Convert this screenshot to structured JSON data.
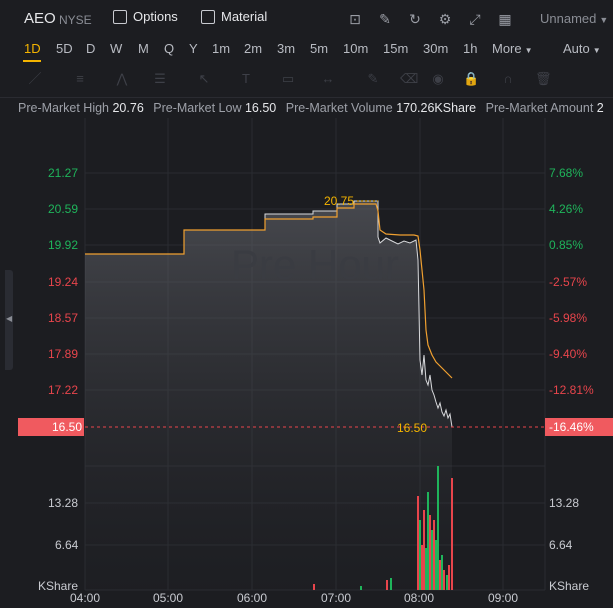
{
  "header": {
    "symbol": "AEO",
    "exchange": "NYSE",
    "options_label": "Options",
    "material_label": "Material",
    "layout_name": "Unnamed",
    "tools": [
      "chart-type-icon",
      "draw-icon",
      "refresh-icon",
      "settings-icon",
      "fullscreen-icon",
      "layout-grid-icon"
    ]
  },
  "periods": [
    "1D",
    "5D",
    "D",
    "W",
    "M",
    "Q",
    "Y",
    "1m",
    "2m",
    "3m",
    "5m",
    "10m",
    "15m",
    "30m",
    "1h",
    "More",
    "Auto"
  ],
  "active_period": "1D",
  "stats": [
    {
      "label": "Pre-Market High",
      "value": "20.76"
    },
    {
      "label": "Pre-Market Low",
      "value": "16.50"
    },
    {
      "label": "Pre-Market Volume",
      "value": "170.26KShare"
    },
    {
      "label": "Pre-Market Amount",
      "value": "2"
    }
  ],
  "chart": {
    "watermark": "Pre Hour",
    "left_axis": [
      "21.27",
      "20.59",
      "19.92",
      "19.24",
      "18.57",
      "17.89",
      "17.22"
    ],
    "right_axis": [
      "7.68%",
      "4.26%",
      "0.85%",
      "-2.57%",
      "-5.98%",
      "-9.40%",
      "-12.81%"
    ],
    "current_price": "16.50",
    "current_pct": "-16.46%",
    "high_marker": "20.75",
    "low_marker": "16.50",
    "vol_left": [
      "13.28",
      "6.64",
      "KShare"
    ],
    "vol_right": [
      "13.28",
      "6.64",
      "KShare"
    ],
    "time_axis": [
      "04:00",
      "05:00",
      "06:00",
      "07:00",
      "08:00",
      "09:00"
    ],
    "colors": {
      "up": "#1fb45b",
      "down": "#e8454c",
      "accent": "#f4b400",
      "avg_line": "#f0a030"
    }
  }
}
